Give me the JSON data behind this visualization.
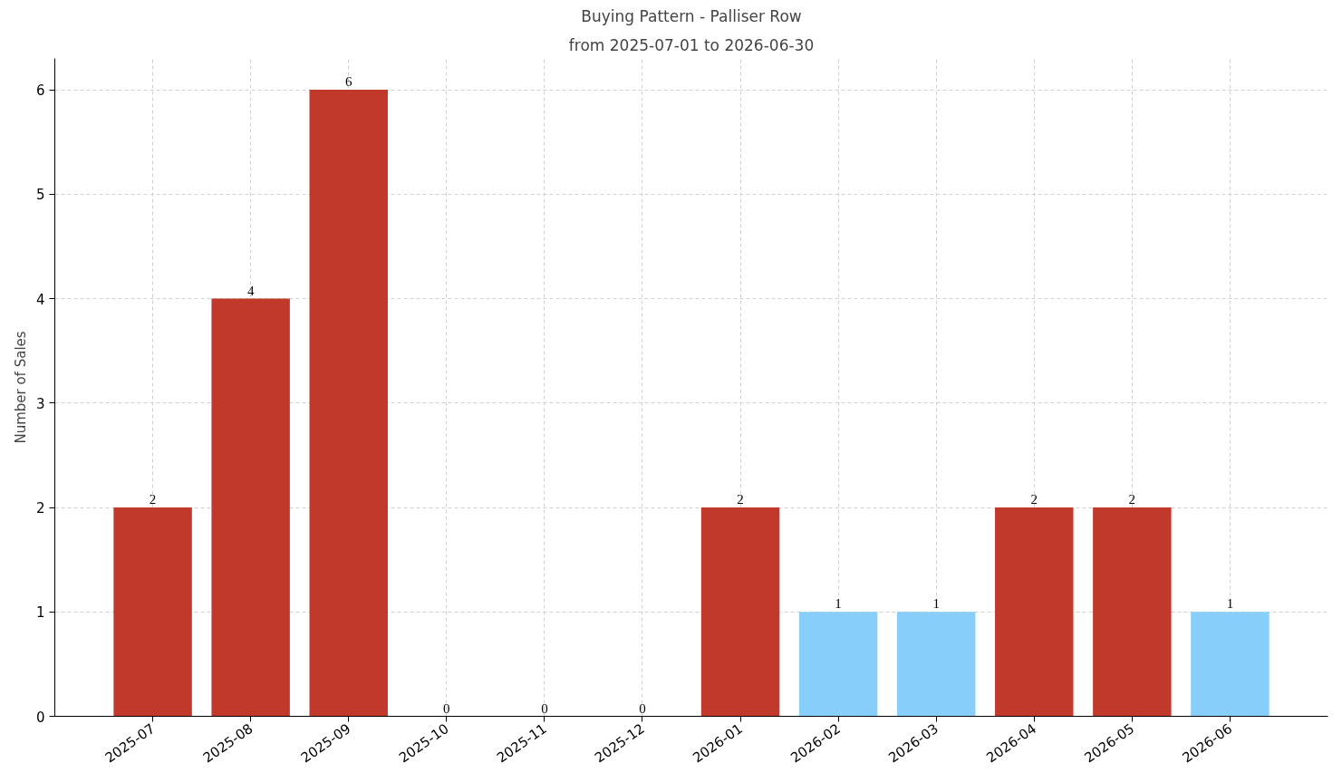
{
  "chart_data": {
    "type": "bar",
    "title": "Buying Pattern - Palliser Row",
    "subtitle": "from 2025-07-01 to 2026-06-30",
    "ylabel": "Number of Sales",
    "categories": [
      "2025-07",
      "2025-08",
      "2025-09",
      "2025-10",
      "2025-11",
      "2025-12",
      "2026-01",
      "2026-02",
      "2026-03",
      "2026-04",
      "2026-05",
      "2026-06"
    ],
    "values": [
      2,
      4,
      6,
      0,
      0,
      0,
      2,
      1,
      1,
      2,
      2,
      1
    ],
    "colors": [
      "#c0392b",
      "#c0392b",
      "#c0392b",
      "#c0392b",
      "#c0392b",
      "#c0392b",
      "#c0392b",
      "#87cefa",
      "#87cefa",
      "#c0392b",
      "#c0392b",
      "#87cefa"
    ],
    "ylim": [
      0,
      6.3
    ],
    "yticks": [
      0,
      1,
      2,
      3,
      4,
      5,
      6
    ],
    "grid": true,
    "data_labels": true
  }
}
